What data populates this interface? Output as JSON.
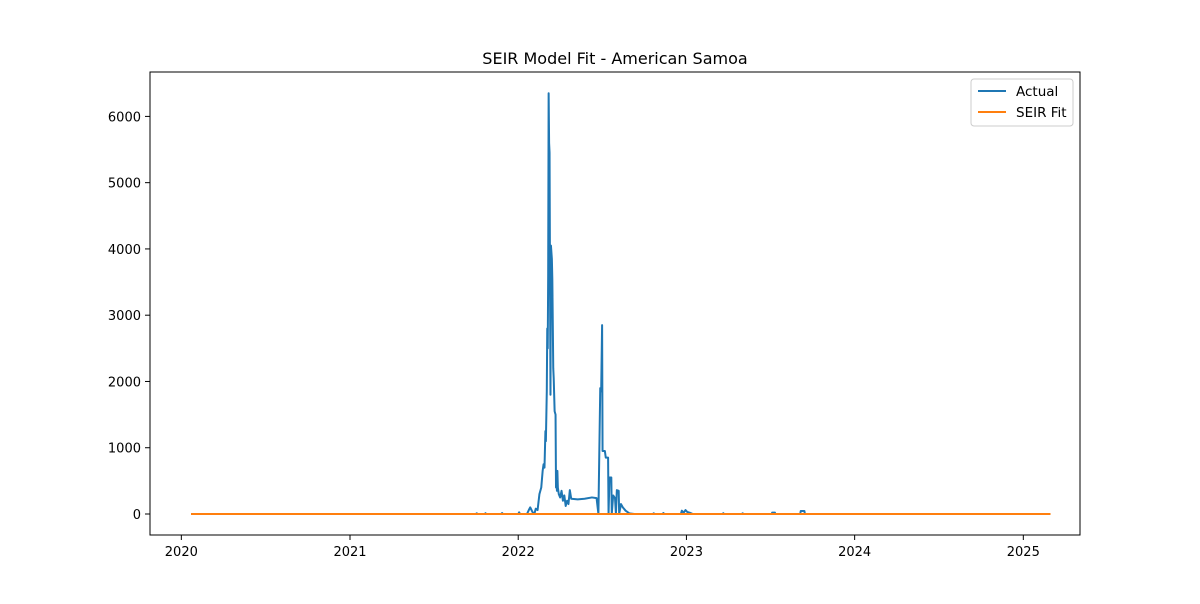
{
  "chart_data": {
    "type": "line",
    "title": "SEIR Model Fit - American Samoa",
    "xlabel": "",
    "ylabel": "",
    "x_axis_type": "date",
    "xlim": [
      "2019-10-25",
      "2025-05-04"
    ],
    "ylim": [
      -317,
      6670
    ],
    "x_ticks": [
      "2020",
      "2021",
      "2022",
      "2023",
      "2024",
      "2025"
    ],
    "y_ticks": [
      "0",
      "1000",
      "2000",
      "3000",
      "4000",
      "5000",
      "6000"
    ],
    "legend_position": "top-right",
    "grid": false,
    "series": [
      {
        "name": "Actual",
        "color": "#1f77b4",
        "points": [
          [
            "2020-01-22",
            0
          ],
          [
            "2021-10-01",
            0
          ],
          [
            "2021-10-03",
            10
          ],
          [
            "2021-10-05",
            0
          ],
          [
            "2021-10-20",
            0
          ],
          [
            "2021-10-22",
            12
          ],
          [
            "2021-10-24",
            0
          ],
          [
            "2021-11-25",
            0
          ],
          [
            "2021-11-27",
            15
          ],
          [
            "2021-11-29",
            0
          ],
          [
            "2022-01-01",
            0
          ],
          [
            "2022-01-03",
            25
          ],
          [
            "2022-01-05",
            0
          ],
          [
            "2022-01-20",
            0
          ],
          [
            "2022-01-24",
            60
          ],
          [
            "2022-01-27",
            100
          ],
          [
            "2022-02-01",
            30
          ],
          [
            "2022-02-05",
            0
          ],
          [
            "2022-02-08",
            80
          ],
          [
            "2022-02-12",
            60
          ],
          [
            "2022-02-16",
            300
          ],
          [
            "2022-02-20",
            400
          ],
          [
            "2022-02-23",
            650
          ],
          [
            "2022-02-25",
            750
          ],
          [
            "2022-02-27",
            700
          ],
          [
            "2022-03-01",
            1250
          ],
          [
            "2022-03-02",
            1100
          ],
          [
            "2022-03-04",
            1850
          ],
          [
            "2022-03-05",
            2800
          ],
          [
            "2022-03-06",
            2500
          ],
          [
            "2022-03-07",
            3600
          ],
          [
            "2022-03-08",
            6350
          ],
          [
            "2022-03-09",
            5600
          ],
          [
            "2022-03-10",
            5450
          ],
          [
            "2022-03-11",
            3500
          ],
          [
            "2022-03-12",
            1800
          ],
          [
            "2022-03-13",
            4050
          ],
          [
            "2022-03-15",
            3850
          ],
          [
            "2022-03-16",
            3550
          ],
          [
            "2022-03-18",
            2200
          ],
          [
            "2022-03-19",
            2050
          ],
          [
            "2022-03-21",
            1550
          ],
          [
            "2022-03-23",
            1500
          ],
          [
            "2022-03-24",
            400
          ],
          [
            "2022-03-25",
            600
          ],
          [
            "2022-03-26",
            350
          ],
          [
            "2022-03-27",
            650
          ],
          [
            "2022-03-28",
            400
          ],
          [
            "2022-03-30",
            300
          ],
          [
            "2022-04-02",
            250
          ],
          [
            "2022-04-05",
            350
          ],
          [
            "2022-04-08",
            200
          ],
          [
            "2022-04-11",
            280
          ],
          [
            "2022-04-14",
            120
          ],
          [
            "2022-04-17",
            200
          ],
          [
            "2022-04-20",
            150
          ],
          [
            "2022-04-23",
            360
          ],
          [
            "2022-04-26",
            230
          ],
          [
            "2022-05-10",
            220
          ],
          [
            "2022-05-25",
            230
          ],
          [
            "2022-06-10",
            250
          ],
          [
            "2022-06-20",
            240
          ],
          [
            "2022-06-24",
            0
          ],
          [
            "2022-06-28",
            1900
          ],
          [
            "2022-06-30",
            1850
          ],
          [
            "2022-07-02",
            2850
          ],
          [
            "2022-07-03",
            950
          ],
          [
            "2022-07-08",
            950
          ],
          [
            "2022-07-10",
            850
          ],
          [
            "2022-07-15",
            850
          ],
          [
            "2022-07-16",
            0
          ],
          [
            "2022-07-18",
            550
          ],
          [
            "2022-07-22",
            550
          ],
          [
            "2022-07-23",
            0
          ],
          [
            "2022-07-26",
            280
          ],
          [
            "2022-07-30",
            240
          ],
          [
            "2022-08-01",
            0
          ],
          [
            "2022-08-03",
            360
          ],
          [
            "2022-08-07",
            350
          ],
          [
            "2022-08-08",
            0
          ],
          [
            "2022-08-12",
            150
          ],
          [
            "2022-08-16",
            100
          ],
          [
            "2022-08-22",
            50
          ],
          [
            "2022-08-30",
            10
          ],
          [
            "2022-09-10",
            0
          ],
          [
            "2022-10-20",
            0
          ],
          [
            "2022-10-22",
            10
          ],
          [
            "2022-10-24",
            0
          ],
          [
            "2022-11-10",
            0
          ],
          [
            "2022-11-12",
            15
          ],
          [
            "2022-11-14",
            0
          ],
          [
            "2022-12-20",
            0
          ],
          [
            "2022-12-22",
            50
          ],
          [
            "2022-12-26",
            20
          ],
          [
            "2022-12-30",
            60
          ],
          [
            "2023-01-03",
            30
          ],
          [
            "2023-01-08",
            20
          ],
          [
            "2023-01-15",
            0
          ],
          [
            "2023-03-20",
            0
          ],
          [
            "2023-03-22",
            12
          ],
          [
            "2023-03-24",
            0
          ],
          [
            "2023-05-01",
            0
          ],
          [
            "2023-05-03",
            10
          ],
          [
            "2023-05-05",
            0
          ],
          [
            "2023-07-05",
            0
          ],
          [
            "2023-07-06",
            20
          ],
          [
            "2023-07-12",
            20
          ],
          [
            "2023-07-13",
            0
          ],
          [
            "2023-09-05",
            0
          ],
          [
            "2023-09-06",
            45
          ],
          [
            "2023-09-14",
            45
          ],
          [
            "2023-09-15",
            0
          ],
          [
            "2025-03-01",
            0
          ]
        ]
      },
      {
        "name": "SEIR Fit",
        "color": "#ff7f0e",
        "points": [
          [
            "2020-01-22",
            0
          ],
          [
            "2025-03-01",
            0
          ]
        ]
      }
    ]
  }
}
